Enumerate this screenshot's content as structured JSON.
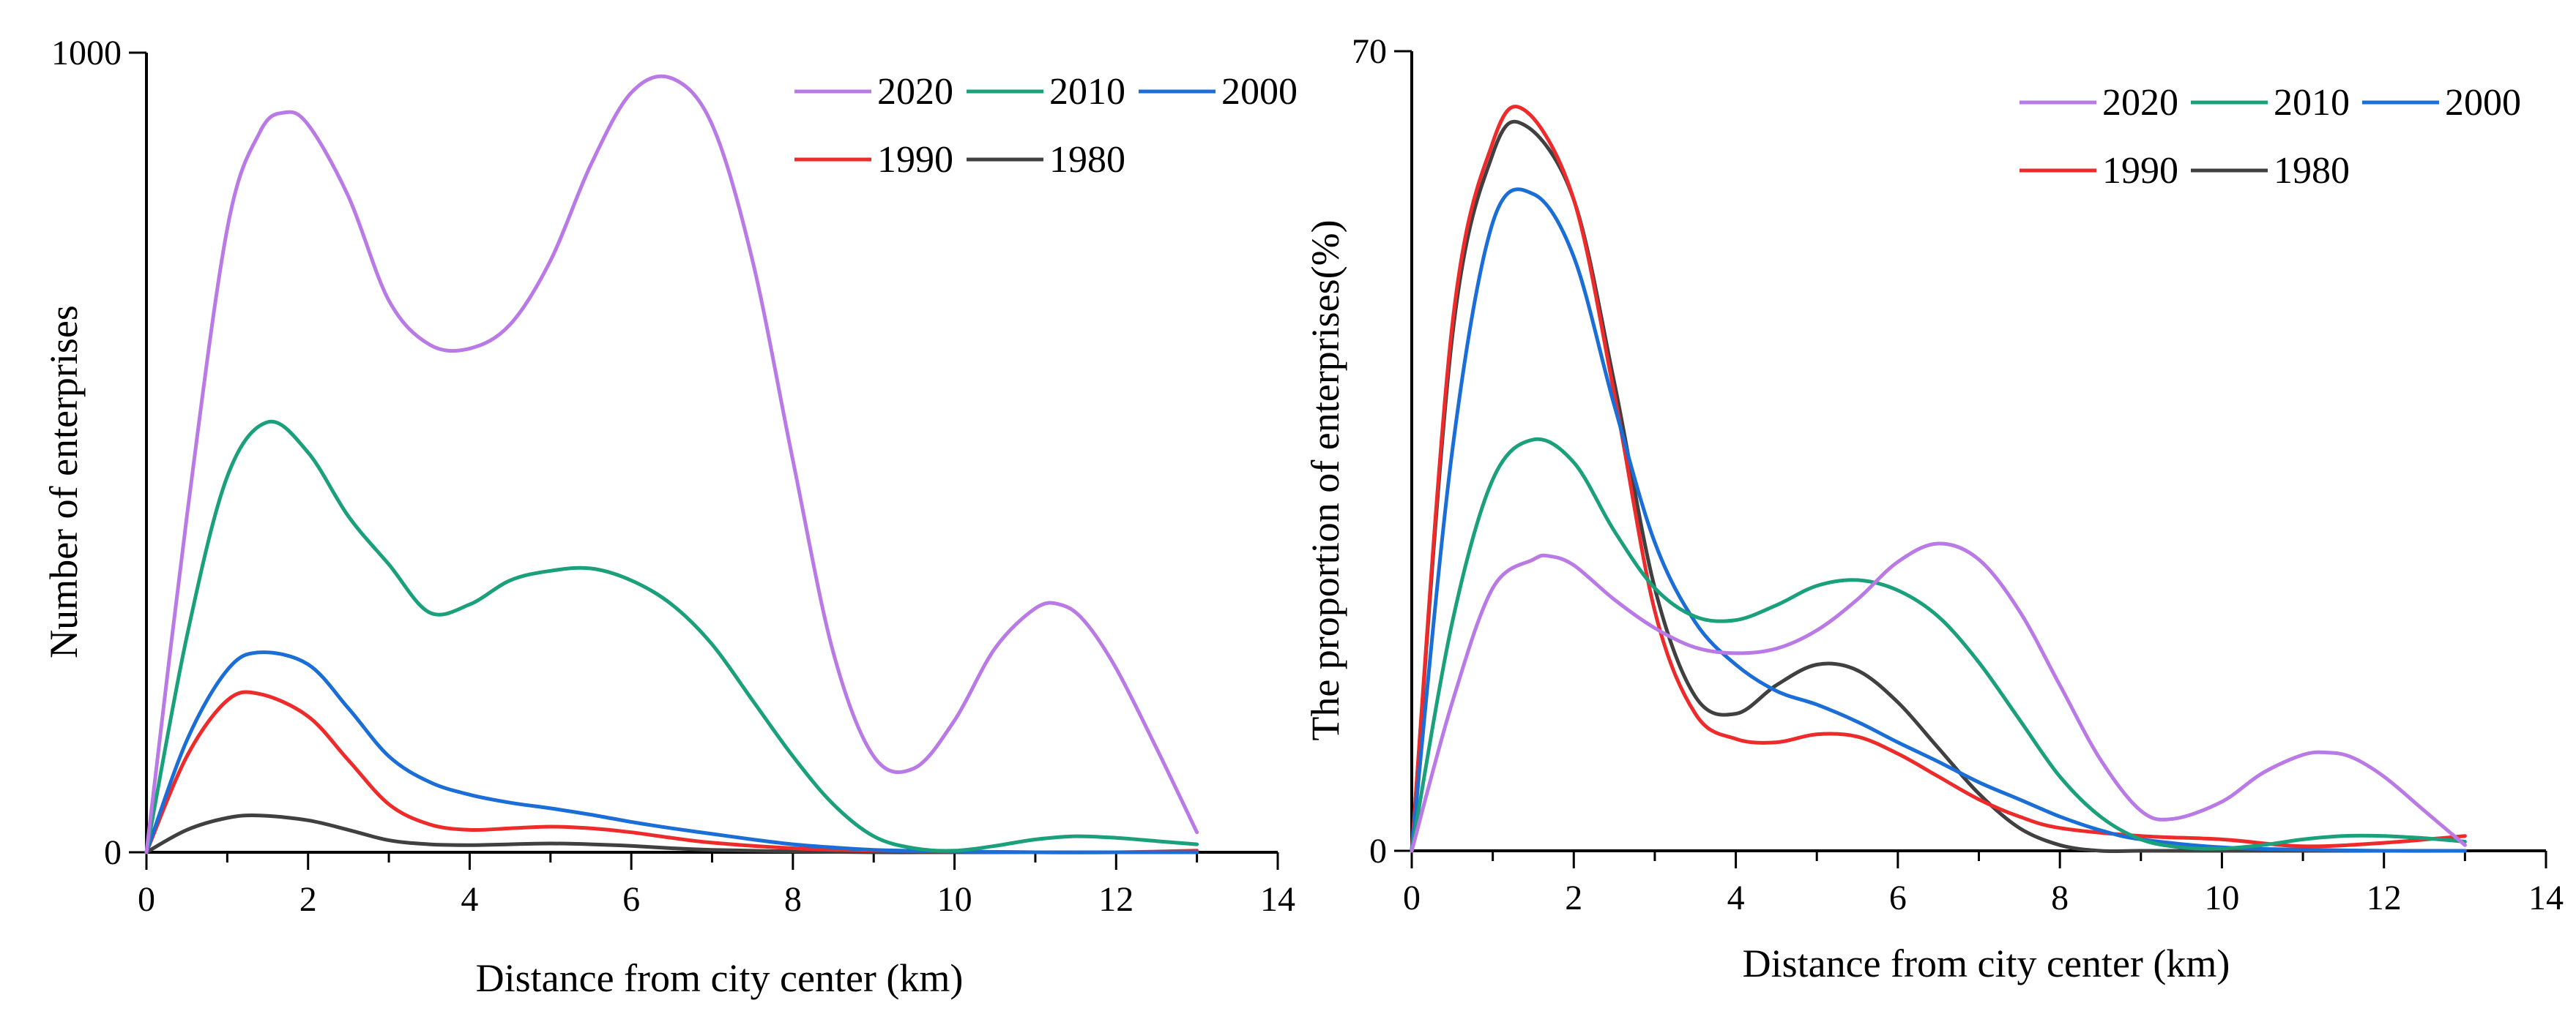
{
  "chart_data": [
    {
      "type": "line",
      "title": "",
      "xlabel": "Distance from city center (km)",
      "ylabel": "Number of enterprises",
      "xlim": [
        0,
        14
      ],
      "ylim": [
        0,
        1000
      ],
      "xticks": [
        "0",
        "2",
        "4",
        "6",
        "8",
        "10",
        "12",
        "14"
      ],
      "yticks": [
        "0",
        "1000"
      ],
      "legend_position": "top-right",
      "series": [
        {
          "name": "2020",
          "color": "#b97ae6",
          "x": [
            0,
            0.5,
            1,
            1.4,
            1.7,
            2,
            2.5,
            3,
            3.5,
            4,
            4.5,
            5,
            5.5,
            6,
            6.5,
            7,
            7.5,
            8,
            8.5,
            9,
            9.5,
            10,
            10.5,
            11,
            11.3,
            11.6,
            12,
            12.5,
            13
          ],
          "y": [
            0,
            420,
            780,
            900,
            925,
            910,
            820,
            690,
            635,
            630,
            660,
            740,
            860,
            950,
            968,
            910,
            740,
            490,
            250,
            120,
            105,
            165,
            255,
            305,
            310,
            290,
            230,
            130,
            25
          ]
        },
        {
          "name": "2010",
          "color": "#1aa07a",
          "x": [
            0,
            0.5,
            1,
            1.5,
            2,
            2.5,
            3,
            3.5,
            4,
            4.5,
            5,
            5.5,
            6,
            6.5,
            7,
            7.5,
            8,
            8.5,
            9,
            9.5,
            10,
            10.5,
            11,
            11.5,
            12,
            12.5,
            13
          ],
          "y": [
            0,
            270,
            470,
            538,
            500,
            420,
            360,
            300,
            310,
            340,
            352,
            355,
            340,
            310,
            260,
            190,
            120,
            60,
            20,
            5,
            2,
            8,
            16,
            20,
            18,
            14,
            10
          ]
        },
        {
          "name": "2000",
          "color": "#1a6ed6",
          "x": [
            0,
            0.5,
            1,
            1.4,
            2,
            2.5,
            3,
            3.5,
            4,
            4.5,
            5,
            5.5,
            6,
            6.5,
            7,
            7.5,
            8,
            8.5,
            9,
            10,
            11,
            12,
            13
          ],
          "y": [
            0,
            140,
            228,
            250,
            235,
            180,
            120,
            88,
            72,
            62,
            55,
            47,
            38,
            30,
            23,
            16,
            10,
            6,
            3,
            1,
            0,
            0,
            0
          ]
        },
        {
          "name": "1990",
          "color": "#ee2b2b",
          "x": [
            0,
            0.5,
            1,
            1.4,
            2,
            2.5,
            3,
            3.5,
            4,
            4.5,
            5,
            5.5,
            6,
            6.5,
            7,
            8,
            9,
            10,
            11,
            12,
            13
          ],
          "y": [
            0,
            120,
            190,
            198,
            170,
            115,
            60,
            35,
            28,
            30,
            32,
            30,
            25,
            18,
            12,
            5,
            2,
            1,
            0,
            0,
            2
          ]
        },
        {
          "name": "1980",
          "color": "#404040",
          "x": [
            0,
            0.5,
            1,
            1.4,
            2,
            2.5,
            3,
            3.5,
            4,
            4.5,
            5,
            5.5,
            6,
            6.5,
            7,
            8,
            9,
            10,
            11,
            12,
            13
          ],
          "y": [
            0,
            28,
            43,
            46,
            40,
            28,
            15,
            10,
            9,
            10,
            11,
            10,
            8,
            5,
            3,
            1,
            0,
            0,
            0,
            0,
            0
          ]
        }
      ]
    },
    {
      "type": "line",
      "title": "",
      "xlabel": "Distance from city center (km)",
      "ylabel": "The proportion of enterprises(%)",
      "xlim": [
        0,
        14
      ],
      "ylim": [
        0,
        70
      ],
      "xticks": [
        "0",
        "2",
        "4",
        "6",
        "8",
        "10",
        "12",
        "14"
      ],
      "yticks": [
        "0",
        "70"
      ],
      "legend_position": "top-right",
      "series": [
        {
          "name": "2020",
          "color": "#b97ae6",
          "x": [
            0,
            0.5,
            1,
            1.5,
            1.7,
            2,
            2.5,
            3,
            3.5,
            4,
            4.5,
            5,
            5.5,
            6,
            6.5,
            7,
            7.5,
            8,
            8.5,
            9,
            9.4,
            10,
            10.5,
            11,
            11.3,
            11.6,
            12,
            12.5,
            13
          ],
          "y": [
            0,
            13,
            23,
            25.5,
            25.8,
            25,
            22,
            19.5,
            17.8,
            17.3,
            17.7,
            19.3,
            22,
            25.3,
            26.9,
            25.5,
            21,
            14.5,
            8,
            3.5,
            2.8,
            4.3,
            6.8,
            8.4,
            8.6,
            8.2,
            6.5,
            3.5,
            0.5
          ]
        },
        {
          "name": "2010",
          "color": "#1aa07a",
          "x": [
            0,
            0.5,
            1,
            1.5,
            2,
            2.5,
            3,
            3.5,
            4,
            4.5,
            5,
            5.5,
            6,
            6.5,
            7,
            7.5,
            8,
            8.5,
            9,
            9.5,
            10,
            10.5,
            11,
            11.5,
            12,
            12.5,
            13
          ],
          "y": [
            0,
            20,
            32.5,
            36,
            34,
            28,
            23,
            20.5,
            20.2,
            21.5,
            23.2,
            23.7,
            22.8,
            20.5,
            16.5,
            11.5,
            6.5,
            3,
            1,
            0.3,
            0.2,
            0.5,
            1,
            1.3,
            1.3,
            1.1,
            0.8
          ]
        },
        {
          "name": "2000",
          "color": "#1a6ed6",
          "x": [
            0,
            0.5,
            1,
            1.5,
            2,
            2.5,
            3,
            3.5,
            4,
            4.5,
            5,
            5.5,
            6,
            6.5,
            7,
            7.5,
            8,
            8.5,
            9,
            10,
            11,
            12,
            13
          ],
          "y": [
            0,
            35,
            55,
            57.5,
            52,
            39,
            27,
            20,
            16.3,
            14,
            12.8,
            11.3,
            9.5,
            7.8,
            6,
            4.5,
            3,
            1.8,
            1,
            0.3,
            0.1,
            0,
            0
          ]
        },
        {
          "name": "1990",
          "color": "#ee2b2b",
          "x": [
            0,
            0.5,
            1,
            1.4,
            2,
            2.5,
            3,
            3.5,
            4,
            4.5,
            5,
            5.5,
            6,
            6.5,
            7,
            7.5,
            8,
            9,
            10,
            11,
            12,
            13
          ],
          "y": [
            0,
            46,
            62,
            64.8,
            57,
            40,
            21,
            12,
            9.8,
            9.5,
            10.2,
            10,
            8.5,
            6.5,
            4.5,
            3,
            2,
            1.3,
            1,
            0.4,
            0.7,
            1.3
          ]
        },
        {
          "name": "1980",
          "color": "#404040",
          "x": [
            0,
            0.5,
            1,
            1.4,
            2,
            2.5,
            3,
            3.5,
            4,
            4.5,
            5,
            5.5,
            6,
            6.5,
            7,
            7.5,
            8,
            8.5,
            9,
            10,
            11,
            12,
            13
          ],
          "y": [
            0,
            45,
            61,
            63.5,
            57,
            41,
            23,
            13.5,
            12,
            14.5,
            16.3,
            15.8,
            13,
            9,
            5,
            2,
            0.5,
            0,
            0,
            0,
            0,
            0,
            0
          ]
        }
      ]
    }
  ]
}
